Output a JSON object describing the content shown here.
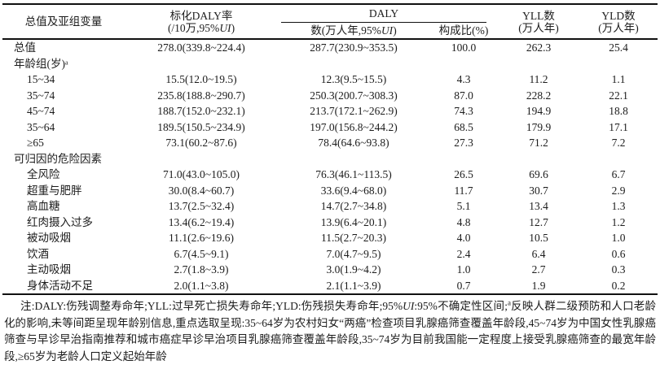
{
  "colors": {
    "background": "#ffffff",
    "text": "#1c1c1c",
    "rule": "#111111"
  },
  "header": {
    "col_variable": "总值及亚组变量",
    "std_rate_line1": "标化DALY率",
    "std_rate_line2_prefix": "(/10万,95%",
    "ui_italic": "UI",
    "close_paren": ")",
    "daly_group": "DALY",
    "daly_num_prefix": "数(万人年,95%",
    "composition": "构成比(%)",
    "yll_line1": "YLL数",
    "yll_line2": "(万人年)",
    "yld_line1": "YLD数",
    "yld_line2": "(万人年)"
  },
  "rows": [
    {
      "label": "总值",
      "section": false,
      "indent": 0,
      "values": [
        "278.0(339.8~224.4)",
        "287.7(230.9~353.5)",
        "100.0",
        "262.3",
        "25.4"
      ]
    },
    {
      "label": "年龄组(岁)ᵃ",
      "section": true,
      "indent": 0,
      "values": [
        "",
        "",
        "",
        "",
        ""
      ]
    },
    {
      "label": "15~34",
      "section": false,
      "indent": 1,
      "values": [
        "15.5(12.0~19.5)",
        "12.3(9.5~15.5)",
        "4.3",
        "11.2",
        "1.1"
      ]
    },
    {
      "label": "35~74",
      "section": false,
      "indent": 1,
      "values": [
        "235.8(188.8~290.7)",
        "250.3(200.7~308.3)",
        "87.0",
        "228.2",
        "22.1"
      ]
    },
    {
      "label": "45~74",
      "section": false,
      "indent": 1,
      "values": [
        "188.7(152.0~232.1)",
        "213.7(172.1~262.9)",
        "74.3",
        "194.9",
        "18.8"
      ]
    },
    {
      "label": "35~64",
      "section": false,
      "indent": 1,
      "values": [
        "189.5(150.5~234.9)",
        "197.0(156.8~244.2)",
        "68.5",
        "179.9",
        "17.1"
      ]
    },
    {
      "label": "≥65",
      "section": false,
      "indent": 1,
      "values": [
        "73.1(60.2~87.6)",
        "78.4(64.6~93.8)",
        "27.3",
        "71.2",
        "7.2"
      ]
    },
    {
      "label": "可归因的危险因素",
      "section": true,
      "indent": 0,
      "values": [
        "",
        "",
        "",
        "",
        ""
      ]
    },
    {
      "label": "全风险",
      "section": false,
      "indent": 1,
      "values": [
        "71.0(43.0~105.0)",
        "76.3(46.1~113.5)",
        "26.5",
        "69.6",
        "6.7"
      ]
    },
    {
      "label": "超重与肥胖",
      "section": false,
      "indent": 1,
      "values": [
        "30.0(8.4~60.7)",
        "33.6(9.4~68.0)",
        "11.7",
        "30.7",
        "2.9"
      ]
    },
    {
      "label": "高血糖",
      "section": false,
      "indent": 1,
      "values": [
        "13.7(2.5~32.4)",
        "14.7(2.7~34.8)",
        "5.1",
        "13.4",
        "1.3"
      ]
    },
    {
      "label": "红肉摄入过多",
      "section": false,
      "indent": 1,
      "values": [
        "13.4(6.2~19.4)",
        "13.9(6.4~20.1)",
        "4.8",
        "12.7",
        "1.2"
      ]
    },
    {
      "label": "被动吸烟",
      "section": false,
      "indent": 1,
      "values": [
        "11.1(2.6~19.6)",
        "11.5(2.7~20.3)",
        "4.0",
        "10.5",
        "1.0"
      ]
    },
    {
      "label": "饮酒",
      "section": false,
      "indent": 1,
      "values": [
        "6.7(4.5~9.1)",
        "7.0(4.7~9.5)",
        "2.4",
        "6.4",
        "0.6"
      ]
    },
    {
      "label": "主动吸烟",
      "section": false,
      "indent": 1,
      "values": [
        "2.7(1.8~3.9)",
        "3.0(1.9~4.2)",
        "1.0",
        "2.7",
        "0.3"
      ]
    },
    {
      "label": "身体活动不足",
      "section": false,
      "indent": 1,
      "values": [
        "2.0(1.1~3.8)",
        "2.1(1.1~3.9)",
        "0.7",
        "1.9",
        "0.2"
      ]
    }
  ],
  "footnote": {
    "p1": "注:DALY:伤残调整寿命年;YLL:过早死亡损失寿命年;YLD:伤残损失寿命年;95%",
    "ui": "UI",
    "p2": ":95%不确定性区间;",
    "sup": "a",
    "p3": "反映人群二级预防和人口老龄化的影响,未等间距呈现年龄别信息,重点选取呈现:35~64岁为农村妇女“两癌”检查项目乳腺癌筛查覆盖年龄段,45~74岁为中国女性乳腺癌筛查与早诊早治指南推荐和城市癌症早诊早治项目乳腺癌筛查覆盖年龄段,35~74岁为目前我国能一定程度上接受乳腺癌筛查的最宽年龄段,≥65岁为老龄人口定义起始年龄"
  }
}
